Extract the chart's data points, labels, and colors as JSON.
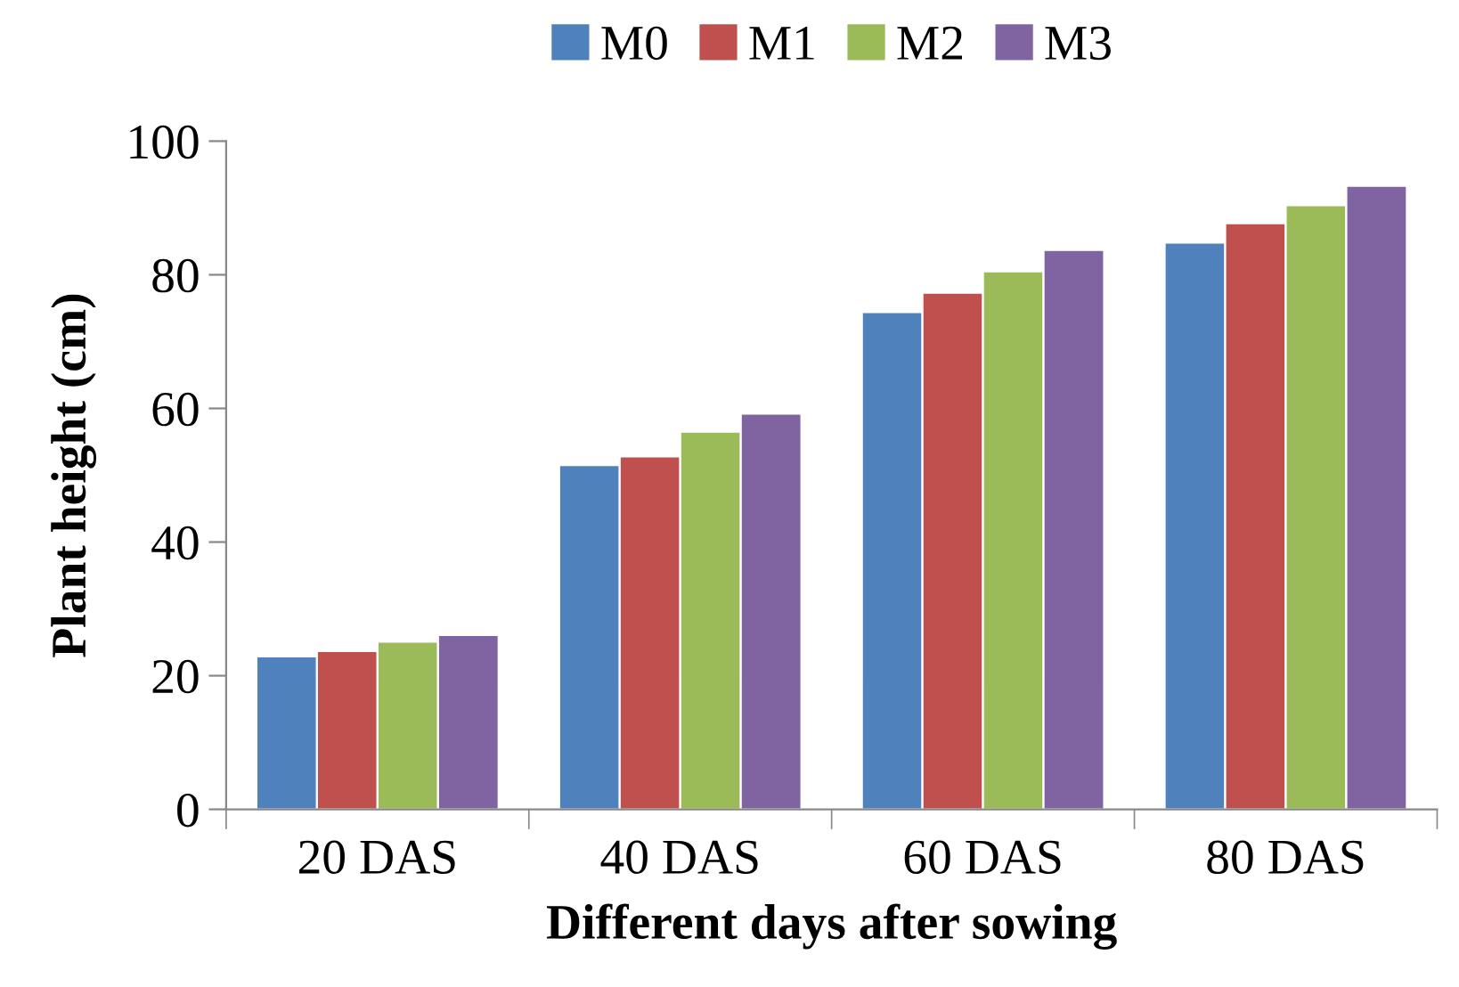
{
  "chart_data": {
    "type": "bar",
    "xlabel": "Different days after sowing",
    "ylabel": "Plant height (cm)",
    "categories": [
      "20 DAS",
      "40 DAS",
      "60 DAS",
      "80 DAS"
    ],
    "series": [
      {
        "name": "M0",
        "color": "#4f81bd",
        "values": [
          22.9,
          51.5,
          74.4,
          84.8
        ]
      },
      {
        "name": "M1",
        "color": "#c0504d",
        "values": [
          23.7,
          52.8,
          77.3,
          87.7
        ]
      },
      {
        "name": "M2",
        "color": "#9bbb59",
        "values": [
          25.1,
          56.5,
          80.5,
          90.4
        ]
      },
      {
        "name": "M3",
        "color": "#8064a2",
        "values": [
          26.1,
          59.2,
          83.7,
          93.3
        ]
      }
    ],
    "ylim": [
      0,
      100
    ],
    "yticks": [
      0,
      20,
      40,
      60,
      80,
      100
    ],
    "grid": false,
    "legend": "top"
  }
}
